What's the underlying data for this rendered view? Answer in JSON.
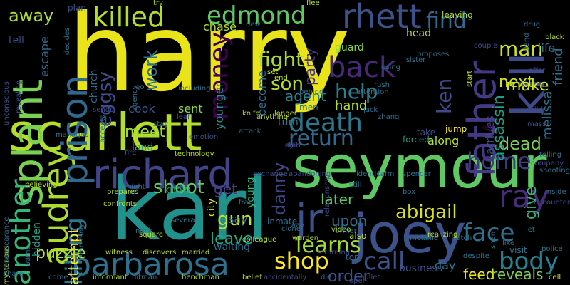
{
  "words": [
    {
      "text": "harry",
      "color": "#e8e419"
    },
    {
      "text": "karl",
      "color": "#21918c"
    },
    {
      "text": "seymour",
      "color": "#5ec962"
    },
    {
      "text": "scarlett",
      "color": "#b5de2b"
    },
    {
      "text": "joey",
      "color": "#3b528b"
    },
    {
      "text": "kill",
      "color": "#3e4a89"
    },
    {
      "text": "richard",
      "color": "#414487"
    },
    {
      "text": "barbarosa",
      "color": "#2c728e"
    },
    {
      "text": "rhett",
      "color": "#3b528b"
    },
    {
      "text": "father",
      "color": "#443983"
    },
    {
      "text": "killed",
      "color": "#b5de2b"
    },
    {
      "text": "edmond",
      "color": "#5ec962"
    },
    {
      "text": "splant",
      "color": "#7ad151"
    },
    {
      "text": "audrey",
      "color": "#addc30"
    },
    {
      "text": "prison",
      "color": "#31688e"
    },
    {
      "text": "death",
      "color": "#2a788e"
    },
    {
      "text": "back",
      "color": "#482878"
    },
    {
      "text": "another",
      "color": "#35b779"
    },
    {
      "text": "shop",
      "color": "#fde725"
    },
    {
      "text": "abigail",
      "color": "#d8e219"
    },
    {
      "text": "ray",
      "color": "#472d7b"
    },
    {
      "text": "face",
      "color": "#2c728e"
    },
    {
      "text": "body",
      "color": "#26828e"
    },
    {
      "text": "home",
      "color": "#443983"
    },
    {
      "text": "jr",
      "color": "#3b528b"
    },
    {
      "text": "killing",
      "color": "#2a788e"
    },
    {
      "text": "money",
      "color": "#440154"
    },
    {
      "text": "call",
      "color": "#3b528b"
    },
    {
      "text": "learns",
      "color": "#a0da39"
    },
    {
      "text": "return",
      "color": "#31688e"
    },
    {
      "text": "fight",
      "color": "#addc30"
    },
    {
      "text": "find",
      "color": "#31688e"
    },
    {
      "text": "help",
      "color": "#26828e"
    },
    {
      "text": "man",
      "color": "#cde11d"
    },
    {
      "text": "son",
      "color": "#b5de2b"
    },
    {
      "text": "shoot",
      "color": "#5ec962"
    },
    {
      "text": "gun",
      "color": "#c2df23"
    },
    {
      "text": "ken",
      "color": "#3e4a89"
    },
    {
      "text": "danny",
      "color": "#414487"
    },
    {
      "text": "eggsy",
      "color": "#3e4a89"
    },
    {
      "text": "next",
      "color": "#cde11d"
    },
    {
      "text": "make",
      "color": "#cde11d"
    },
    {
      "text": "work",
      "color": "#2c728e"
    },
    {
      "text": "dead",
      "color": "#7ad151"
    },
    {
      "text": "give",
      "color": "#35b779"
    },
    {
      "text": "assassin",
      "color": "#1f9e89"
    },
    {
      "text": "attempt",
      "color": "#fde725"
    },
    {
      "text": "meet",
      "color": "#a0da39"
    },
    {
      "text": "upon",
      "color": "#2c728e"
    },
    {
      "text": "later",
      "color": "#5ec962"
    },
    {
      "text": "leave",
      "color": "#22a884"
    },
    {
      "text": "agent",
      "color": "#26828e"
    },
    {
      "text": "party",
      "color": "#46327e"
    },
    {
      "text": "hand",
      "color": "#addc30"
    },
    {
      "text": "away",
      "color": "#addc30"
    },
    {
      "text": "melissa",
      "color": "#2c728e"
    },
    {
      "text": "friend",
      "color": "#2c728e"
    },
    {
      "text": "life",
      "color": "#2c728e"
    },
    {
      "text": "puzzle",
      "color": "#b5de2b"
    },
    {
      "text": "order",
      "color": "#3b528b"
    },
    {
      "text": "feed",
      "color": "#e8e419"
    },
    {
      "text": "reveals",
      "color": "#7ad151"
    },
    {
      "text": "day",
      "color": "#2a788e"
    },
    {
      "text": "business",
      "color": "#3b528b"
    },
    {
      "text": "get",
      "color": "#433e85"
    },
    {
      "text": "say",
      "color": "#2a788e"
    },
    {
      "text": "younger",
      "color": "#21918c"
    },
    {
      "text": "sent",
      "color": "#86d549"
    },
    {
      "text": "cook",
      "color": "#3b528b"
    },
    {
      "text": "escape",
      "color": "#31688e"
    },
    {
      "text": "tell",
      "color": "#3e4a89"
    },
    {
      "text": "plan",
      "color": "#3b528b"
    },
    {
      "text": "church",
      "color": "#31688e"
    },
    {
      "text": "hidden",
      "color": "#1f9e89"
    },
    {
      "text": "know",
      "color": "#22a884"
    },
    {
      "text": "chase",
      "color": "#b5de2b"
    },
    {
      "text": "become",
      "color": "#2c728e"
    },
    {
      "text": "guard",
      "color": "#86d549"
    },
    {
      "text": "head",
      "color": "#b5de2b"
    },
    {
      "text": "arrives",
      "color": "#3e4a89"
    },
    {
      "text": "along",
      "color": "#b5de2b"
    },
    {
      "text": "turn",
      "color": "#2a788e"
    },
    {
      "text": "men",
      "color": "#2c728e"
    },
    {
      "text": "young",
      "color": "#35b779"
    },
    {
      "text": "city",
      "color": "#e8e419"
    },
    {
      "text": "waiting",
      "color": "#2c728e"
    },
    {
      "text": "inmate",
      "color": "#2c728e"
    },
    {
      "text": "land",
      "color": "#22a884"
    },
    {
      "text": "leaving",
      "color": "#b5de2b"
    },
    {
      "text": "take",
      "color": "#3e4a89"
    },
    {
      "text": "forced",
      "color": "#1f9e89"
    },
    {
      "text": "jump",
      "color": "#fde725"
    },
    {
      "text": "key",
      "color": "#440154"
    },
    {
      "text": "mass",
      "color": "#3b528b"
    },
    {
      "text": "box",
      "color": "#2c728e"
    },
    {
      "text": "owner",
      "color": "#2c728e"
    },
    {
      "text": "also",
      "color": "#b5de2b"
    },
    {
      "text": "top",
      "color": "#2c728e"
    },
    {
      "text": "visit",
      "color": "#2a788e"
    },
    {
      "text": "police",
      "color": "#2a788e"
    },
    {
      "text": "cell",
      "color": "#cde11d"
    },
    {
      "text": "married",
      "color": "#b5de2b"
    },
    {
      "text": "discovers",
      "color": "#b5de2b"
    },
    {
      "text": "witness",
      "color": "#b5de2b"
    },
    {
      "text": "bring",
      "color": "#2c728e"
    },
    {
      "text": "confronts",
      "color": "#b5de2b"
    },
    {
      "text": "several",
      "color": "#2a788e"
    },
    {
      "text": "square",
      "color": "#b5de2b"
    },
    {
      "text": "informant",
      "color": "#b5de2b"
    },
    {
      "text": "hitman",
      "color": "#2a788e"
    },
    {
      "text": "henchman",
      "color": "#b5de2b"
    },
    {
      "text": "belief",
      "color": "#addc30"
    },
    {
      "text": "accidentally",
      "color": "#3e4a89"
    },
    {
      "text": "die",
      "color": "#2c728e"
    },
    {
      "text": "bullet",
      "color": "#3e4a89"
    },
    {
      "text": "mysterious",
      "color": "#b5de2b"
    },
    {
      "text": "disappearance",
      "color": "#31688e"
    },
    {
      "text": "unconscious",
      "color": "#3b528b"
    },
    {
      "text": "revealing",
      "color": "#3b528b"
    },
    {
      "text": "sends",
      "color": "#3e4a89"
    },
    {
      "text": "stay",
      "color": "#2c728e"
    },
    {
      "text": "leaf",
      "color": "#3b528b"
    },
    {
      "text": "emotion",
      "color": "#3b528b"
    },
    {
      "text": "technology",
      "color": "#b5de2b"
    },
    {
      "text": "fire",
      "color": "#3b528b"
    },
    {
      "text": "exchange",
      "color": "#3b528b"
    },
    {
      "text": "abandoning",
      "color": "#3b528b"
    },
    {
      "text": "identical",
      "color": "#2c728e"
    },
    {
      "text": "spencer",
      "color": "#2c728e"
    },
    {
      "text": "shooting",
      "color": "#2c728e"
    },
    {
      "text": "encounter",
      "color": "#3e4a89"
    },
    {
      "text": "company",
      "color": "#3e4a89"
    },
    {
      "text": "offer",
      "color": "#3e4a89"
    },
    {
      "text": "child",
      "color": "#3e4a89"
    },
    {
      "text": "drug",
      "color": "#2c728e"
    },
    {
      "text": "couple",
      "color": "#3e4a89"
    },
    {
      "text": "sister",
      "color": "#2c728e"
    },
    {
      "text": "new",
      "color": "#2c728e"
    },
    {
      "text": "behind",
      "color": "#2c728e"
    },
    {
      "text": "attention",
      "color": "#2c728e"
    },
    {
      "text": "rush",
      "color": "#2c728e"
    },
    {
      "text": "zhang",
      "color": "#2c728e"
    },
    {
      "text": "jack",
      "color": "#2c728e"
    },
    {
      "text": "set",
      "color": "#b5de2b"
    },
    {
      "text": "end",
      "color": "#b5de2b"
    },
    {
      "text": "longer",
      "color": "#b5de2b"
    },
    {
      "text": "anything",
      "color": "#b5de2b"
    },
    {
      "text": "knife",
      "color": "#b5de2b"
    },
    {
      "text": "attack",
      "color": "#2c728e"
    },
    {
      "text": "using",
      "color": "#2c728e"
    },
    {
      "text": "frank",
      "color": "#2c728e"
    },
    {
      "text": "way",
      "color": "#2c728e"
    },
    {
      "text": "warden",
      "color": "#b5de2b"
    },
    {
      "text": "clone",
      "color": "#2c728e"
    },
    {
      "text": "still",
      "color": "#2c728e"
    },
    {
      "text": "farm",
      "color": "#2c728e"
    },
    {
      "text": "video",
      "color": "#b5de2b"
    },
    {
      "text": "melanie",
      "color": "#2c728e"
    },
    {
      "text": "catch",
      "color": "#2c728e"
    },
    {
      "text": "realizing",
      "color": "#b5de2b"
    },
    {
      "text": "despite",
      "color": "#2c728e"
    },
    {
      "text": "let",
      "color": "#2c728e"
    },
    {
      "text": "like",
      "color": "#2c728e"
    },
    {
      "text": "shen",
      "color": "#2c728e"
    },
    {
      "text": "inside",
      "color": "#2c728e"
    },
    {
      "text": "telling",
      "color": "#2c728e"
    },
    {
      "text": "black",
      "color": "#b5de2b"
    },
    {
      "text": "island",
      "color": "#2c728e"
    },
    {
      "text": "start",
      "color": "#b5de2b"
    },
    {
      "text": "proposes",
      "color": "#2c728e"
    },
    {
      "text": "agency",
      "color": "#2c728e"
    },
    {
      "text": "go",
      "color": "#2c728e"
    },
    {
      "text": "including",
      "color": "#2c728e"
    },
    {
      "text": "try",
      "color": "#b5de2b"
    },
    {
      "text": "flee",
      "color": "#b5de2b"
    },
    {
      "text": "accepts",
      "color": "#2c728e"
    },
    {
      "text": "decides",
      "color": "#2c728e"
    },
    {
      "text": "manages",
      "color": "#2c728e"
    },
    {
      "text": "believing",
      "color": "#b5de2b"
    },
    {
      "text": "prepares",
      "color": "#b5de2b"
    },
    {
      "text": "night",
      "color": "#2c728e"
    },
    {
      "text": "neck",
      "color": "#2c728e"
    },
    {
      "text": "colleague",
      "color": "#b5de2b"
    },
    {
      "text": "share",
      "color": "#2c728e"
    },
    {
      "text": "come",
      "color": "#2c728e"
    },
    {
      "text": "warns",
      "color": "#2c728e"
    },
    {
      "text": "morning",
      "color": "#2c728e"
    },
    {
      "text": "open",
      "color": "#3e4a89"
    },
    {
      "text": "returning",
      "color": "#3e4a89"
    },
    {
      "text": "relationship",
      "color": "#3e4a89"
    },
    {
      "text": "dy",
      "color": "#3e4a89"
    },
    {
      "text": "stab",
      "color": "#3e4a89"
    },
    {
      "text": "pain",
      "color": "#3e4a89"
    }
  ]
}
